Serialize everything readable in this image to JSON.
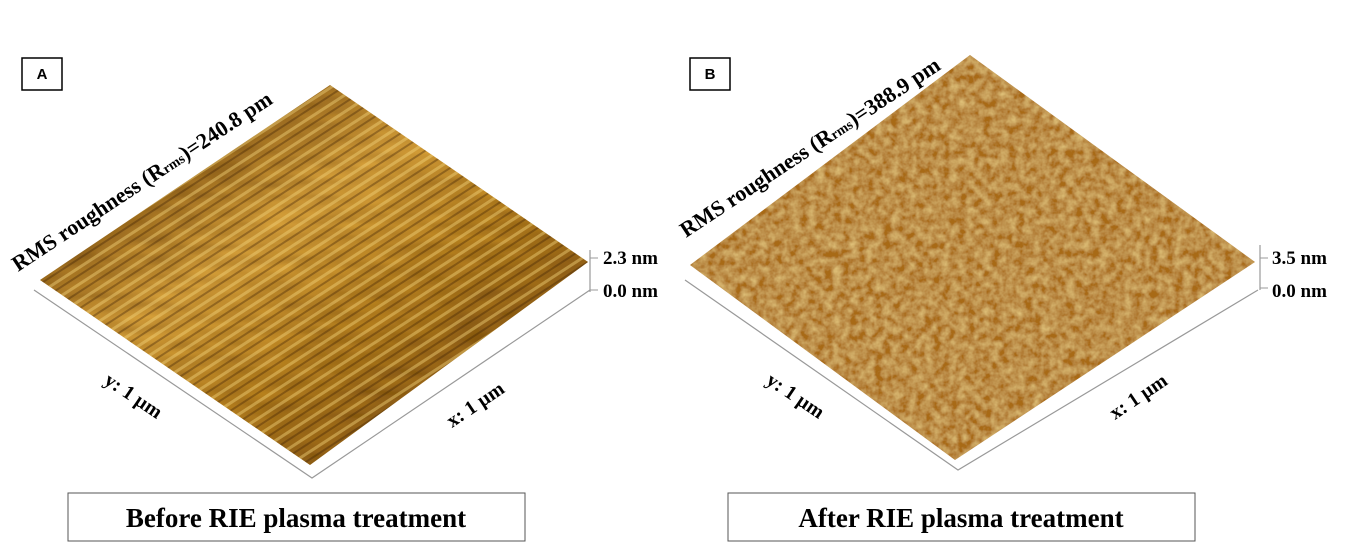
{
  "panels": [
    {
      "label": "A",
      "roughness_prefix": "RMS roughness (R",
      "roughness_sub": "rms",
      "roughness_suffix": ")=240.8 pm",
      "z_max": "2.3 nm",
      "z_min": "0.0 nm",
      "y_axis": "y: 1 µm",
      "x_axis": "x: 1 µm",
      "caption": "Before RIE plasma treatment"
    },
    {
      "label": "B",
      "roughness_prefix": "RMS roughness (R",
      "roughness_sub": "rms",
      "roughness_suffix": ")=388.9 pm",
      "z_max": "3.5 nm",
      "z_min": "0.0 nm",
      "y_axis": "y: 1 µm",
      "x_axis": "x: 1 µm",
      "caption": "After RIE plasma treatment"
    }
  ]
}
